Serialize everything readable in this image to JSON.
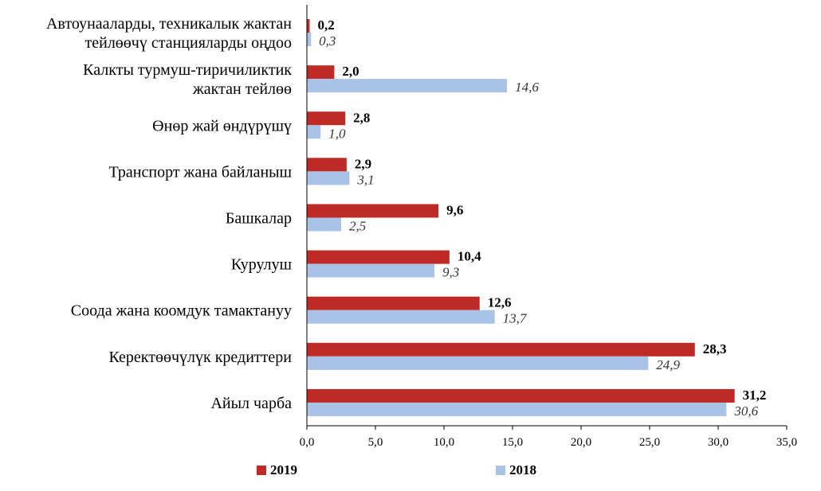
{
  "chart_data": {
    "type": "bar",
    "orientation": "horizontal",
    "categories": [
      [
        "Автоунааларды, техникалык жактан",
        "тейлөөчү станцияларды оңдоо"
      ],
      [
        "Калкты турмуш-тиричиликтик",
        "жактан тейлөө"
      ],
      [
        "Өнөр жай өндүрүшү"
      ],
      [
        "Транспорт жана байланыш"
      ],
      [
        "Башкалар"
      ],
      [
        "Курулуш"
      ],
      [
        "Соода жана коомдук тамактануу"
      ],
      [
        "Керектөөчүлүк кредиттери"
      ],
      [
        "Айыл чарба"
      ]
    ],
    "series": [
      {
        "name": "2019",
        "color": "#BE2A26",
        "values": [
          0.2,
          2.0,
          2.8,
          2.9,
          9.6,
          10.4,
          12.6,
          28.3,
          31.2
        ],
        "labels": [
          "0,2",
          "2,0",
          "2,8",
          "2,9",
          "9,6",
          "10,4",
          "12,6",
          "28,3",
          "31,2"
        ]
      },
      {
        "name": "2018",
        "color": "#A9C3E6",
        "values": [
          0.3,
          14.6,
          1.0,
          3.1,
          2.5,
          9.3,
          13.7,
          24.9,
          30.6
        ],
        "labels": [
          "0,3",
          "14,6",
          "1,0",
          "3,1",
          "2,5",
          "9,3",
          "13,7",
          "24,9",
          "30,6"
        ]
      }
    ],
    "xlim": [
      0,
      35
    ],
    "xticks": [
      0,
      5,
      10,
      15,
      20,
      25,
      30,
      35
    ],
    "xtick_labels": [
      "0,0",
      "5,0",
      "10,0",
      "15,0",
      "20,0",
      "25,0",
      "30,0",
      "35,0"
    ],
    "grid": false,
    "legend_position": "bottom"
  }
}
